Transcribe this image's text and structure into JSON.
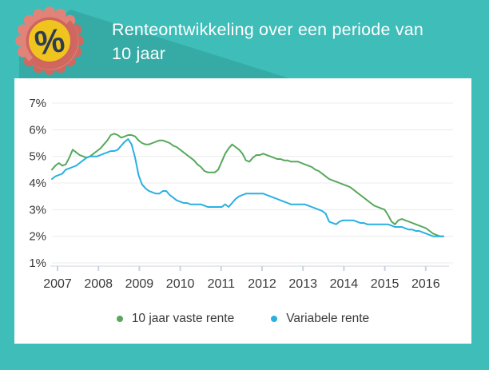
{
  "header": {
    "title_line1": "Renteontwikkeling over een periode van",
    "title_line2": "10 jaar",
    "badge": {
      "icon": "percent-badge-icon",
      "symbol": "%"
    }
  },
  "colors": {
    "background_teal": "#3FBDB8",
    "shadow_teal": "#36ABA6",
    "card_white": "#FFFFFF",
    "fixed_rate_green": "#57A85C",
    "variable_rate_blue": "#29B0E2",
    "badge_salmon_light": "#E2837A",
    "badge_salmon_dark": "#D0685F",
    "badge_ring_red": "#CF655F",
    "badge_yellow": "#F0C41F",
    "badge_navy": "#2E3E50",
    "gridline_gray": "#ECECEC",
    "axis_gray": "#DDE4EB",
    "text_dark": "#3A3A3A"
  },
  "chart_data": {
    "type": "line",
    "title": "Renteontwikkeling over een periode van 10 jaar",
    "x_unit": "month",
    "x_start": "2007-01",
    "x_end": "2016-06",
    "x_tick_labels": [
      "2007",
      "2008",
      "2009",
      "2010",
      "2011",
      "2012",
      "2013",
      "2014",
      "2015",
      "2016"
    ],
    "y_tick_labels": [
      "7%",
      "6%",
      "5%",
      "4%",
      "3%",
      "2%",
      "1%"
    ],
    "ylim": [
      1,
      7
    ],
    "y_unit": "percent",
    "grid": "horizontal",
    "legend_position": "bottom",
    "series": [
      {
        "name": "10 jaar vaste rente",
        "color": "#57A85C",
        "values": [
          4.5,
          4.65,
          4.75,
          4.65,
          4.7,
          4.95,
          5.25,
          5.15,
          5.05,
          5.0,
          4.95,
          5.0,
          5.1,
          5.2,
          5.3,
          5.45,
          5.6,
          5.8,
          5.85,
          5.8,
          5.7,
          5.75,
          5.8,
          5.8,
          5.75,
          5.6,
          5.5,
          5.45,
          5.45,
          5.5,
          5.55,
          5.6,
          5.6,
          5.55,
          5.5,
          5.4,
          5.35,
          5.25,
          5.15,
          5.05,
          4.95,
          4.85,
          4.7,
          4.6,
          4.45,
          4.4,
          4.4,
          4.4,
          4.5,
          4.8,
          5.1,
          5.3,
          5.45,
          5.35,
          5.25,
          5.1,
          4.85,
          4.8,
          4.95,
          5.05,
          5.05,
          5.1,
          5.05,
          5.0,
          4.95,
          4.9,
          4.9,
          4.85,
          4.85,
          4.8,
          4.8,
          4.8,
          4.75,
          4.7,
          4.65,
          4.6,
          4.5,
          4.45,
          4.35,
          4.25,
          4.15,
          4.1,
          4.05,
          4.0,
          3.95,
          3.9,
          3.85,
          3.75,
          3.65,
          3.55,
          3.45,
          3.35,
          3.25,
          3.15,
          3.1,
          3.05,
          3.0,
          2.8,
          2.55,
          2.45,
          2.6,
          2.65,
          2.6,
          2.55,
          2.5,
          2.45,
          2.4,
          2.35,
          2.3,
          2.2,
          2.1,
          2.05,
          2.0,
          2.0
        ]
      },
      {
        "name": "Variabele rente",
        "color": "#29B0E2",
        "values": [
          4.15,
          4.25,
          4.3,
          4.35,
          4.5,
          4.55,
          4.6,
          4.65,
          4.75,
          4.85,
          4.95,
          5.0,
          5.0,
          5.0,
          5.05,
          5.1,
          5.15,
          5.2,
          5.2,
          5.25,
          5.4,
          5.55,
          5.65,
          5.45,
          4.95,
          4.3,
          3.95,
          3.8,
          3.7,
          3.65,
          3.6,
          3.6,
          3.7,
          3.7,
          3.55,
          3.45,
          3.35,
          3.3,
          3.25,
          3.25,
          3.2,
          3.2,
          3.2,
          3.2,
          3.15,
          3.1,
          3.1,
          3.1,
          3.1,
          3.1,
          3.2,
          3.1,
          3.25,
          3.4,
          3.5,
          3.55,
          3.6,
          3.6,
          3.6,
          3.6,
          3.6,
          3.6,
          3.55,
          3.5,
          3.45,
          3.4,
          3.35,
          3.3,
          3.25,
          3.2,
          3.2,
          3.2,
          3.2,
          3.2,
          3.15,
          3.1,
          3.05,
          3.0,
          2.95,
          2.85,
          2.55,
          2.5,
          2.45,
          2.55,
          2.6,
          2.6,
          2.6,
          2.6,
          2.55,
          2.5,
          2.5,
          2.45,
          2.45,
          2.45,
          2.45,
          2.45,
          2.45,
          2.45,
          2.4,
          2.35,
          2.35,
          2.35,
          2.3,
          2.25,
          2.25,
          2.2,
          2.2,
          2.15,
          2.1,
          2.05,
          2.0,
          2.0,
          2.0,
          2.0
        ]
      }
    ]
  },
  "legend": {
    "items": [
      {
        "label": "10 jaar vaste rente",
        "color": "#57A85C"
      },
      {
        "label": "Variabele rente",
        "color": "#29B0E2"
      }
    ]
  }
}
